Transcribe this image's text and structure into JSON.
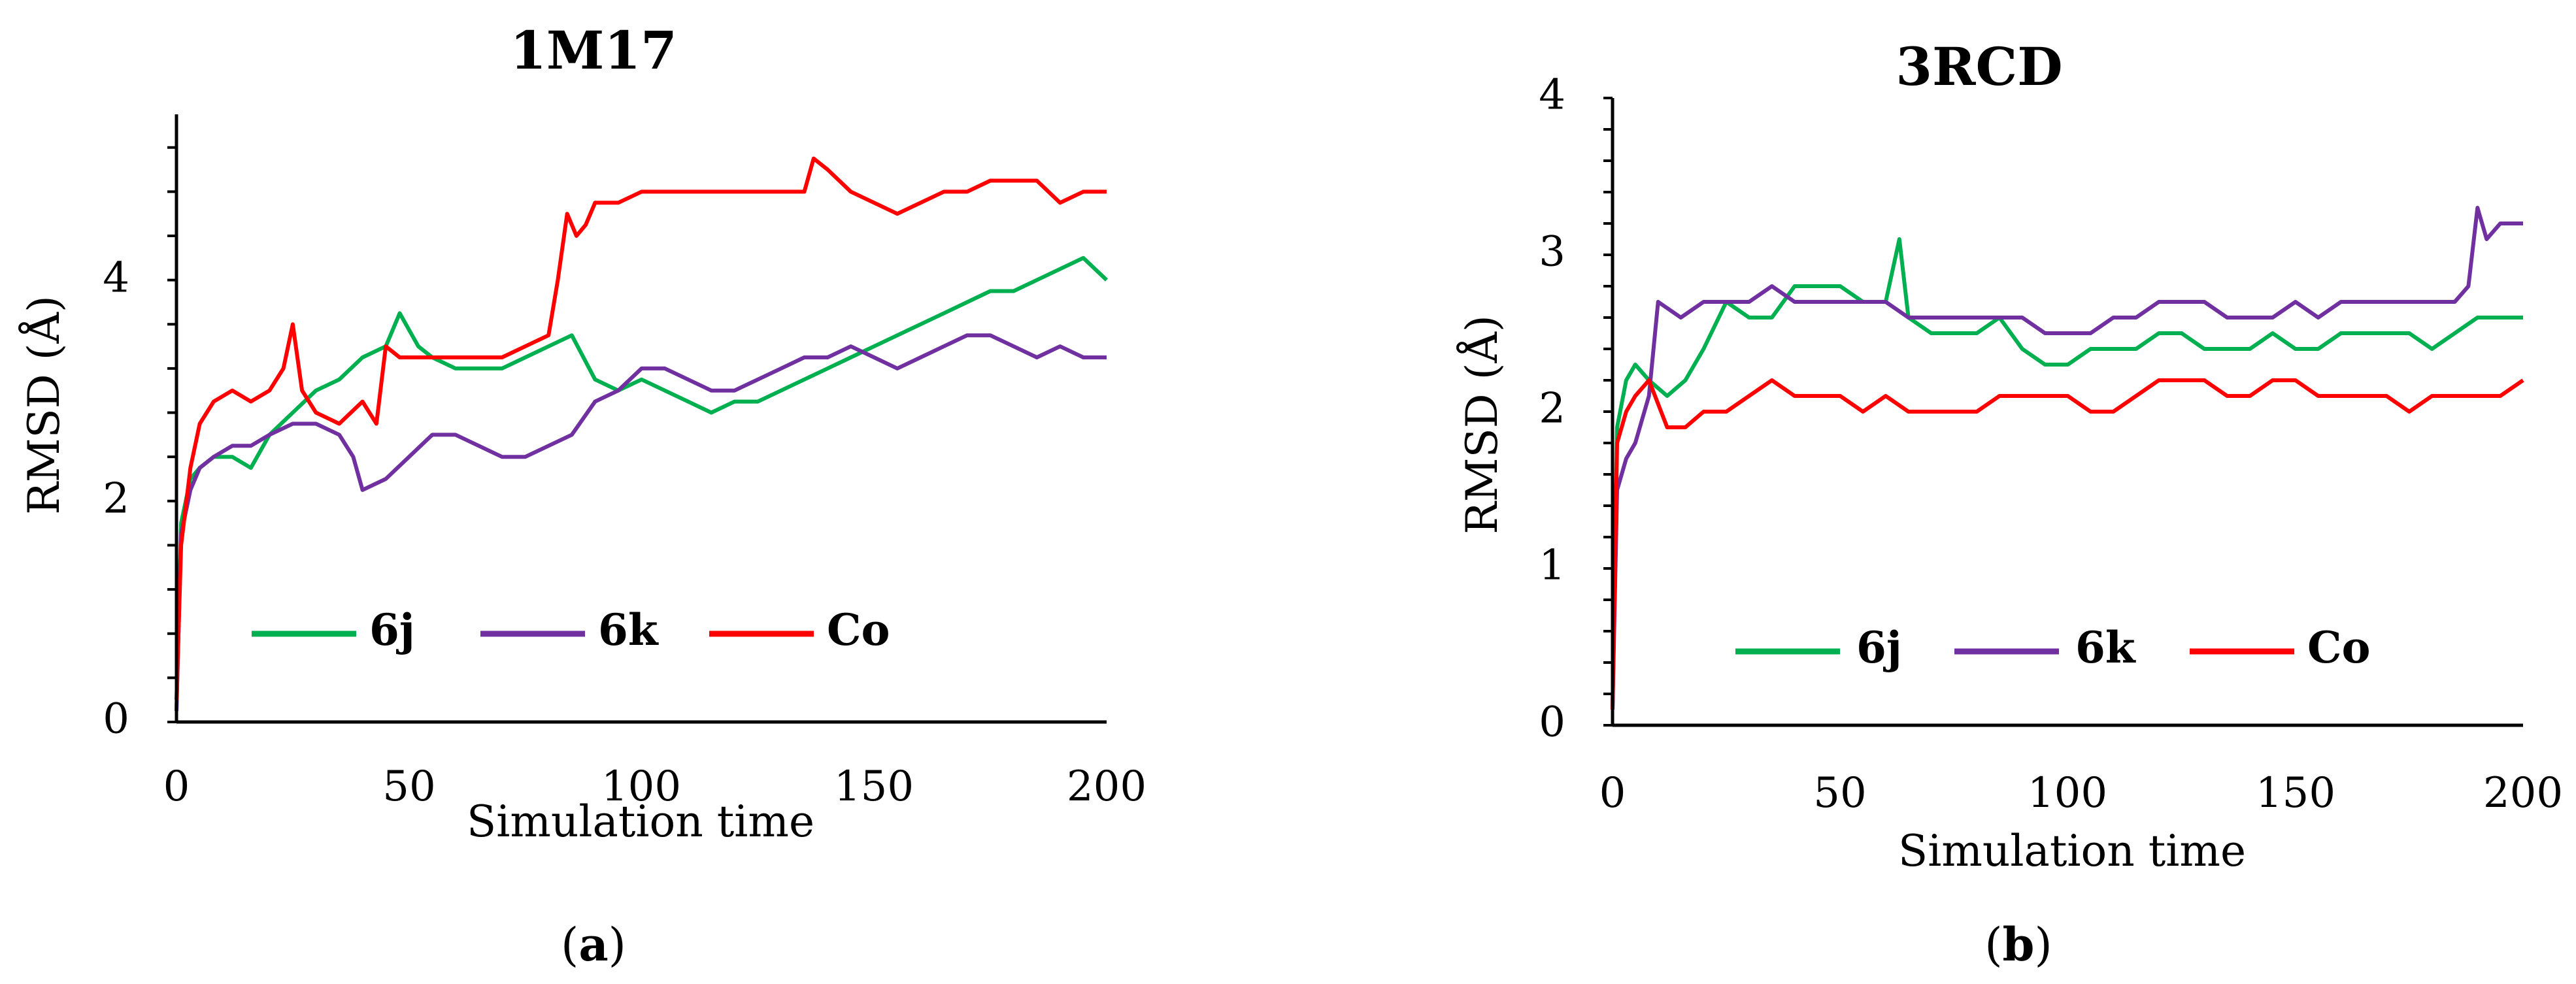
{
  "chart_data": [
    {
      "type": "line",
      "title": "1M17",
      "panel": "a",
      "xlabel": "Simulation time",
      "ylabel": "RMSD (Å)",
      "xlim": [
        0,
        200
      ],
      "ylim": [
        0,
        5.5
      ],
      "xticks": [
        0,
        50,
        100,
        150,
        200
      ],
      "yticks": [
        0,
        2,
        4
      ],
      "legend_position": "lower-center",
      "series": [
        {
          "name": "6j",
          "color": "#00b050",
          "x": [
            0,
            1,
            3,
            5,
            8,
            12,
            16,
            20,
            25,
            30,
            35,
            40,
            45,
            48,
            52,
            55,
            60,
            65,
            70,
            75,
            80,
            85,
            90,
            95,
            100,
            105,
            110,
            115,
            120,
            125,
            130,
            135,
            140,
            145,
            150,
            155,
            160,
            165,
            170,
            175,
            180,
            185,
            190,
            195,
            200
          ],
          "y": [
            0.1,
            1.8,
            2.2,
            2.3,
            2.4,
            2.4,
            2.3,
            2.6,
            2.8,
            3.0,
            3.1,
            3.3,
            3.4,
            3.7,
            3.4,
            3.3,
            3.2,
            3.2,
            3.2,
            3.3,
            3.4,
            3.5,
            3.1,
            3.0,
            3.1,
            3.0,
            2.9,
            2.8,
            2.9,
            2.9,
            3.0,
            3.1,
            3.2,
            3.3,
            3.4,
            3.5,
            3.6,
            3.7,
            3.8,
            3.9,
            3.9,
            4.0,
            4.1,
            4.2,
            4.0
          ]
        },
        {
          "name": "6k",
          "color": "#7030a0",
          "x": [
            0,
            1,
            3,
            5,
            8,
            12,
            16,
            20,
            25,
            30,
            35,
            38,
            40,
            45,
            50,
            55,
            60,
            65,
            70,
            75,
            80,
            85,
            90,
            95,
            100,
            105,
            110,
            115,
            120,
            125,
            130,
            135,
            140,
            145,
            150,
            155,
            160,
            165,
            170,
            175,
            180,
            185,
            190,
            195,
            200
          ],
          "y": [
            0.1,
            1.7,
            2.1,
            2.3,
            2.4,
            2.5,
            2.5,
            2.6,
            2.7,
            2.7,
            2.6,
            2.4,
            2.1,
            2.2,
            2.4,
            2.6,
            2.6,
            2.5,
            2.4,
            2.4,
            2.5,
            2.6,
            2.9,
            3.0,
            3.2,
            3.2,
            3.1,
            3.0,
            3.0,
            3.1,
            3.2,
            3.3,
            3.3,
            3.4,
            3.3,
            3.2,
            3.3,
            3.4,
            3.5,
            3.5,
            3.4,
            3.3,
            3.4,
            3.3,
            3.3
          ]
        },
        {
          "name": "Co",
          "color": "#ff0000",
          "x": [
            0,
            1,
            3,
            5,
            8,
            12,
            16,
            20,
            23,
            25,
            27,
            30,
            35,
            40,
            43,
            45,
            48,
            50,
            55,
            60,
            65,
            70,
            75,
            80,
            82,
            84,
            86,
            88,
            90,
            95,
            100,
            105,
            110,
            115,
            120,
            125,
            130,
            135,
            137,
            140,
            145,
            150,
            155,
            160,
            165,
            170,
            175,
            180,
            185,
            190,
            195,
            200
          ],
          "y": [
            0.2,
            1.6,
            2.3,
            2.7,
            2.9,
            3.0,
            2.9,
            3.0,
            3.2,
            3.6,
            3.0,
            2.8,
            2.7,
            2.9,
            2.7,
            3.4,
            3.3,
            3.3,
            3.3,
            3.3,
            3.3,
            3.3,
            3.4,
            3.5,
            4.0,
            4.6,
            4.4,
            4.5,
            4.7,
            4.7,
            4.8,
            4.8,
            4.8,
            4.8,
            4.8,
            4.8,
            4.8,
            4.8,
            5.1,
            5.0,
            4.8,
            4.7,
            4.6,
            4.7,
            4.8,
            4.8,
            4.9,
            4.9,
            4.9,
            4.7,
            4.8,
            4.8
          ]
        }
      ]
    },
    {
      "type": "line",
      "title": "3RCD",
      "panel": "b",
      "xlabel": "Simulation time",
      "ylabel": "RMSD (Å)",
      "xlim": [
        0,
        200
      ],
      "ylim": [
        0,
        4
      ],
      "xticks": [
        0,
        50,
        100,
        150,
        200
      ],
      "yticks": [
        0,
        1,
        2,
        3,
        4
      ],
      "legend_position": "lower-center",
      "series": [
        {
          "name": "6j",
          "color": "#00b050",
          "x": [
            0,
            1,
            3,
            5,
            8,
            12,
            16,
            20,
            25,
            30,
            35,
            40,
            45,
            50,
            55,
            60,
            63,
            65,
            70,
            75,
            80,
            85,
            90,
            95,
            100,
            105,
            110,
            115,
            120,
            125,
            130,
            135,
            140,
            145,
            150,
            155,
            160,
            165,
            170,
            175,
            180,
            185,
            190,
            195,
            200
          ],
          "y": [
            0.1,
            1.9,
            2.2,
            2.3,
            2.2,
            2.1,
            2.2,
            2.4,
            2.7,
            2.6,
            2.6,
            2.8,
            2.8,
            2.8,
            2.7,
            2.7,
            3.1,
            2.6,
            2.5,
            2.5,
            2.5,
            2.6,
            2.4,
            2.3,
            2.3,
            2.4,
            2.4,
            2.4,
            2.5,
            2.5,
            2.4,
            2.4,
            2.4,
            2.5,
            2.4,
            2.4,
            2.5,
            2.5,
            2.5,
            2.5,
            2.4,
            2.5,
            2.6,
            2.6,
            2.6
          ]
        },
        {
          "name": "6k",
          "color": "#7030a0",
          "x": [
            0,
            1,
            3,
            5,
            8,
            10,
            15,
            20,
            25,
            30,
            35,
            40,
            45,
            50,
            55,
            60,
            65,
            70,
            75,
            80,
            85,
            90,
            95,
            100,
            105,
            110,
            115,
            120,
            125,
            130,
            135,
            140,
            145,
            150,
            155,
            160,
            165,
            170,
            175,
            180,
            185,
            188,
            190,
            192,
            195,
            200
          ],
          "y": [
            0.1,
            1.5,
            1.7,
            1.8,
            2.1,
            2.7,
            2.6,
            2.7,
            2.7,
            2.7,
            2.8,
            2.7,
            2.7,
            2.7,
            2.7,
            2.7,
            2.6,
            2.6,
            2.6,
            2.6,
            2.6,
            2.6,
            2.5,
            2.5,
            2.5,
            2.6,
            2.6,
            2.7,
            2.7,
            2.7,
            2.6,
            2.6,
            2.6,
            2.7,
            2.6,
            2.7,
            2.7,
            2.7,
            2.7,
            2.7,
            2.7,
            2.8,
            3.3,
            3.1,
            3.2,
            3.2
          ]
        },
        {
          "name": "Co",
          "color": "#ff0000",
          "x": [
            0,
            1,
            3,
            5,
            8,
            12,
            16,
            20,
            25,
            30,
            35,
            40,
            45,
            50,
            55,
            60,
            65,
            70,
            75,
            80,
            85,
            90,
            95,
            100,
            105,
            110,
            115,
            120,
            125,
            130,
            135,
            140,
            145,
            150,
            155,
            160,
            165,
            170,
            175,
            180,
            185,
            190,
            195,
            200
          ],
          "y": [
            0.1,
            1.8,
            2.0,
            2.1,
            2.2,
            1.9,
            1.9,
            2.0,
            2.0,
            2.1,
            2.2,
            2.1,
            2.1,
            2.1,
            2.0,
            2.1,
            2.0,
            2.0,
            2.0,
            2.0,
            2.1,
            2.1,
            2.1,
            2.1,
            2.0,
            2.0,
            2.1,
            2.2,
            2.2,
            2.2,
            2.1,
            2.1,
            2.2,
            2.2,
            2.1,
            2.1,
            2.1,
            2.1,
            2.0,
            2.1,
            2.1,
            2.1,
            2.1,
            2.2
          ]
        }
      ]
    }
  ]
}
